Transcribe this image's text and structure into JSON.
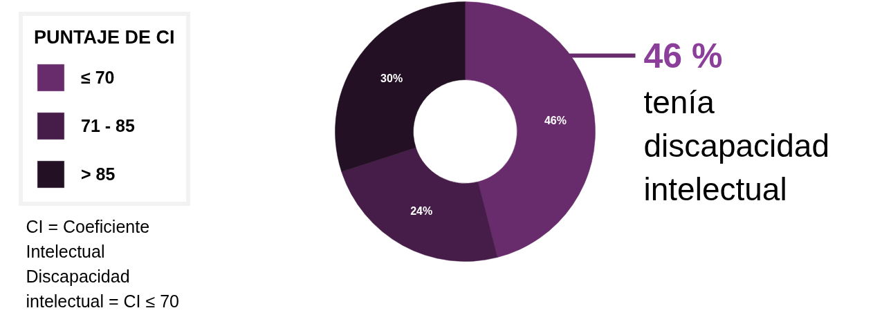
{
  "chart_data": {
    "type": "donut",
    "legend_title": "PUNTAJE DE CI",
    "categories": [
      "≤ 70",
      "71 - 85",
      "> 85"
    ],
    "values": [
      46,
      24,
      30
    ],
    "colors": [
      "#682c6d",
      "#451d48",
      "#231024"
    ],
    "value_labels": [
      "46%",
      "24%",
      "30%"
    ],
    "legend": "left",
    "annotations": [
      "46 %",
      "tenía discapacidad intelectual",
      "CI = Coeficiente Intelectual",
      "Discapacidad intelectual = CI ≤ 70"
    ]
  }
}
